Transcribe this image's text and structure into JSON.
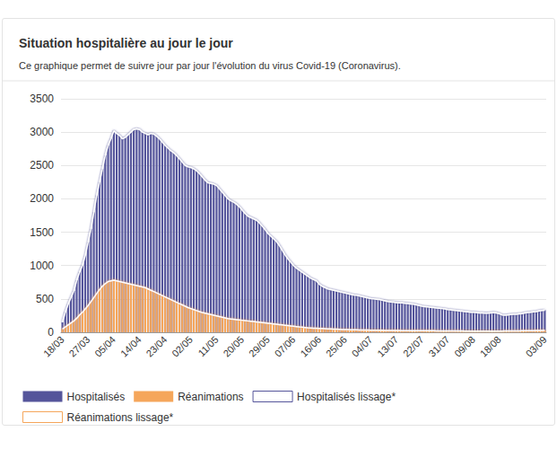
{
  "chart_data": {
    "type": "bar",
    "title": "Situation hospitalière au jour le jour",
    "subtitle": "Ce graphique permet de suivre jour par jour l'évolution du virus Covid-19 (Coronavirus).",
    "categories": [
      "18/03",
      null,
      null,
      null,
      null,
      null,
      null,
      null,
      null,
      "27/03",
      null,
      null,
      null,
      null,
      null,
      null,
      null,
      null,
      "05/04",
      null,
      null,
      null,
      null,
      null,
      null,
      null,
      null,
      "14/04",
      null,
      null,
      null,
      null,
      null,
      null,
      null,
      null,
      "23/04",
      null,
      null,
      null,
      null,
      null,
      null,
      null,
      null,
      "02/05",
      null,
      null,
      null,
      null,
      null,
      null,
      null,
      null,
      "11/05",
      null,
      null,
      null,
      null,
      null,
      null,
      null,
      null,
      "20/05",
      null,
      null,
      null,
      null,
      null,
      null,
      null,
      null,
      "29/05",
      null,
      null,
      null,
      null,
      null,
      null,
      null,
      null,
      "07/06",
      null,
      null,
      null,
      null,
      null,
      null,
      null,
      null,
      "16/06",
      null,
      null,
      null,
      null,
      null,
      null,
      null,
      null,
      "25/06",
      null,
      null,
      null,
      null,
      null,
      null,
      null,
      null,
      "04/07",
      null,
      null,
      null,
      null,
      null,
      null,
      null,
      null,
      "13/07",
      null,
      null,
      null,
      null,
      null,
      null,
      null,
      null,
      "22/07",
      null,
      null,
      null,
      null,
      null,
      null,
      null,
      null,
      "31/07",
      null,
      null,
      null,
      null,
      null,
      null,
      null,
      null,
      "09/08",
      null,
      null,
      null,
      null,
      null,
      null,
      null,
      null,
      "18/08",
      null,
      null,
      null,
      null,
      null,
      null,
      null,
      null,
      null,
      null,
      null,
      null,
      null,
      null,
      null,
      "03/09"
    ],
    "series": [
      {
        "name": "Hospitalisés",
        "color": "#55559b",
        "values": [
          150,
          300,
          420,
          520,
          620,
          780,
          900,
          1000,
          1150,
          1350,
          1550,
          1800,
          2050,
          2250,
          2450,
          2650,
          2800,
          2900,
          3020,
          2980,
          2950,
          2900,
          2920,
          2960,
          3000,
          3040,
          3050,
          3040,
          3000,
          2980,
          2960,
          2980,
          2970,
          2940,
          2900,
          2850,
          2800,
          2760,
          2720,
          2690,
          2650,
          2600,
          2550,
          2500,
          2480,
          2470,
          2450,
          2420,
          2380,
          2330,
          2280,
          2240,
          2230,
          2220,
          2200,
          2150,
          2100,
          2050,
          2000,
          1970,
          1950,
          1920,
          1880,
          1830,
          1780,
          1740,
          1720,
          1700,
          1680,
          1640,
          1590,
          1540,
          1480,
          1440,
          1400,
          1360,
          1300,
          1230,
          1160,
          1100,
          1050,
          1000,
          960,
          930,
          900,
          870,
          840,
          810,
          790,
          770,
          720,
          690,
          670,
          650,
          640,
          630,
          620,
          610,
          600,
          590,
          580,
          570,
          560,
          555,
          545,
          535,
          525,
          515,
          505,
          500,
          495,
          490,
          480,
          470,
          460,
          455,
          450,
          445,
          440,
          440,
          435,
          430,
          425,
          420,
          410,
          400,
          390,
          385,
          380,
          375,
          370,
          365,
          360,
          355,
          350,
          340,
          335,
          330,
          325,
          320,
          315,
          310,
          305,
          300,
          300,
          295,
          290,
          290,
          285,
          285,
          290,
          295,
          290,
          280,
          260,
          255,
          260,
          265,
          270,
          270,
          275,
          280,
          290,
          295,
          300,
          305,
          310,
          320,
          325,
          330
        ]
      },
      {
        "name": "Réanimations",
        "color": "#f5a65b",
        "values": [
          50,
          80,
          110,
          140,
          170,
          210,
          260,
          300,
          350,
          400,
          460,
          520,
          580,
          640,
          690,
          730,
          760,
          770,
          780,
          770,
          760,
          750,
          740,
          730,
          720,
          710,
          700,
          690,
          680,
          670,
          650,
          630,
          610,
          590,
          570,
          550,
          530,
          510,
          490,
          470,
          450,
          430,
          410,
          390,
          370,
          355,
          340,
          325,
          310,
          295,
          285,
          275,
          265,
          255,
          245,
          235,
          225,
          215,
          205,
          200,
          195,
          190,
          185,
          180,
          175,
          170,
          165,
          160,
          155,
          150,
          145,
          140,
          135,
          130,
          125,
          120,
          115,
          110,
          105,
          100,
          95,
          90,
          85,
          80,
          76,
          72,
          68,
          65,
          62,
          60,
          58,
          56,
          54,
          52,
          50,
          48,
          46,
          44,
          42,
          40,
          39,
          38,
          37,
          36,
          35,
          34,
          33,
          32,
          31,
          30,
          30,
          29,
          29,
          28,
          28,
          27,
          27,
          26,
          26,
          25,
          25,
          25,
          24,
          24,
          24,
          23,
          23,
          23,
          22,
          22,
          22,
          21,
          21,
          21,
          20,
          20,
          20,
          20,
          19,
          19,
          19,
          18,
          18,
          18,
          18,
          18,
          17,
          17,
          17,
          17,
          17,
          17,
          18,
          18,
          18,
          19,
          19,
          20,
          20,
          21,
          21,
          22,
          22,
          23,
          24,
          25,
          26,
          27,
          28,
          30
        ]
      },
      {
        "name": "Hospitalisés lissage*",
        "type": "line",
        "color": "#ffffff",
        "values": [
          150,
          300,
          420,
          520,
          620,
          780,
          900,
          1000,
          1150,
          1350,
          1550,
          1800,
          2050,
          2250,
          2450,
          2650,
          2800,
          2900,
          3020,
          2980,
          2950,
          2900,
          2920,
          2960,
          3000,
          3040,
          3050,
          3040,
          3000,
          2980,
          2960,
          2980,
          2970,
          2940,
          2900,
          2850,
          2800,
          2760,
          2720,
          2690,
          2650,
          2600,
          2550,
          2500,
          2480,
          2470,
          2450,
          2420,
          2380,
          2330,
          2280,
          2240,
          2230,
          2220,
          2200,
          2150,
          2100,
          2050,
          2000,
          1970,
          1950,
          1920,
          1880,
          1830,
          1780,
          1740,
          1720,
          1700,
          1680,
          1640,
          1590,
          1540,
          1480,
          1440,
          1400,
          1360,
          1300,
          1230,
          1160,
          1100,
          1050,
          1000,
          960,
          930,
          900,
          870,
          840,
          810,
          790,
          770,
          720,
          690,
          670,
          650,
          640,
          630,
          620,
          610,
          600,
          590,
          580,
          570,
          560,
          555,
          545,
          535,
          525,
          515,
          505,
          500,
          495,
          490,
          480,
          470,
          460,
          455,
          450,
          445,
          440,
          440,
          435,
          430,
          425,
          420,
          410,
          400,
          390,
          385,
          380,
          375,
          370,
          365,
          360,
          355,
          350,
          340,
          335,
          330,
          325,
          320,
          315,
          310,
          305,
          300,
          300,
          295,
          290,
          290,
          285,
          285,
          290,
          295,
          290,
          280,
          260,
          255,
          260,
          265,
          270,
          270,
          275,
          280,
          290,
          295,
          300,
          305,
          310,
          320,
          325,
          330
        ]
      },
      {
        "name": "Réanimations lissage*",
        "type": "line",
        "color": "#ffffff",
        "values": [
          50,
          80,
          110,
          140,
          170,
          210,
          260,
          300,
          350,
          400,
          460,
          520,
          580,
          640,
          690,
          730,
          760,
          770,
          780,
          770,
          760,
          750,
          740,
          730,
          720,
          710,
          700,
          690,
          680,
          670,
          650,
          630,
          610,
          590,
          570,
          550,
          530,
          510,
          490,
          470,
          450,
          430,
          410,
          390,
          370,
          355,
          340,
          325,
          310,
          295,
          285,
          275,
          265,
          255,
          245,
          235,
          225,
          215,
          205,
          200,
          195,
          190,
          185,
          180,
          175,
          170,
          165,
          160,
          155,
          150,
          145,
          140,
          135,
          130,
          125,
          120,
          115,
          110,
          105,
          100,
          95,
          90,
          85,
          80,
          76,
          72,
          68,
          65,
          62,
          60,
          58,
          56,
          54,
          52,
          50,
          48,
          46,
          44,
          42,
          40,
          39,
          38,
          37,
          36,
          35,
          34,
          33,
          32,
          31,
          30,
          30,
          29,
          29,
          28,
          28,
          27,
          27,
          26,
          26,
          25,
          25,
          25,
          24,
          24,
          24,
          23,
          23,
          23,
          22,
          22,
          22,
          21,
          21,
          21,
          20,
          20,
          20,
          20,
          19,
          19,
          19,
          18,
          18,
          18,
          18,
          18,
          17,
          17,
          17,
          17,
          17,
          17,
          18,
          18,
          18,
          19,
          19,
          20,
          20,
          21,
          21,
          22,
          22,
          23,
          24,
          25,
          26,
          27,
          28,
          30
        ]
      }
    ],
    "ylim": [
      0,
      3500
    ],
    "yticks": [
      0,
      500,
      1000,
      1500,
      2000,
      2500,
      3000,
      3500
    ],
    "grid": true,
    "legend": "bottom"
  }
}
